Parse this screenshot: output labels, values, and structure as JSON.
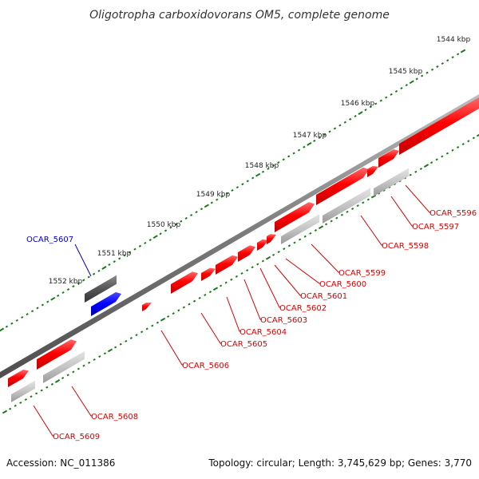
{
  "title": "Oligotropha carboxidovorans OM5, complete genome",
  "footer": {
    "accession": "Accession: NC_011386",
    "summary": "Topology: circular; Length: 3,745,629 bp; Genes: 3,770"
  },
  "scale_labels": [
    "1544 kbp",
    "1545 kbp",
    "1546 kbp",
    "1547 kbp",
    "1548 kbp",
    "1549 kbp",
    "1550 kbp",
    "1551 kbp",
    "1552 kbp"
  ],
  "genes": [
    {
      "label": "OCAR_5596",
      "color": "#dd0000"
    },
    {
      "label": "OCAR_5597",
      "color": "#dd0000"
    },
    {
      "label": "OCAR_5598",
      "color": "#dd0000"
    },
    {
      "label": "OCAR_5599",
      "color": "#dd0000"
    },
    {
      "label": "OCAR_5600",
      "color": "#dd0000"
    },
    {
      "label": "OCAR_5601",
      "color": "#dd0000"
    },
    {
      "label": "OCAR_5602",
      "color": "#dd0000"
    },
    {
      "label": "OCAR_5603",
      "color": "#dd0000"
    },
    {
      "label": "OCAR_5604",
      "color": "#dd0000"
    },
    {
      "label": "OCAR_5605",
      "color": "#dd0000"
    },
    {
      "label": "OCAR_5606",
      "color": "#dd0000"
    },
    {
      "label": "OCAR_5607",
      "color": "#0000cc"
    },
    {
      "label": "OCAR_5608",
      "color": "#dd0000"
    },
    {
      "label": "OCAR_5609",
      "color": "#dd0000"
    }
  ],
  "colors": {
    "forward_feature": "#ff0000",
    "reverse_feature": "#ff0000",
    "highlight_feature": "#0000ff",
    "gene_underlay": "#b0b0b0",
    "dark_gene": "#555555",
    "backbone": "#888888",
    "tick": "#1a7a1a"
  }
}
